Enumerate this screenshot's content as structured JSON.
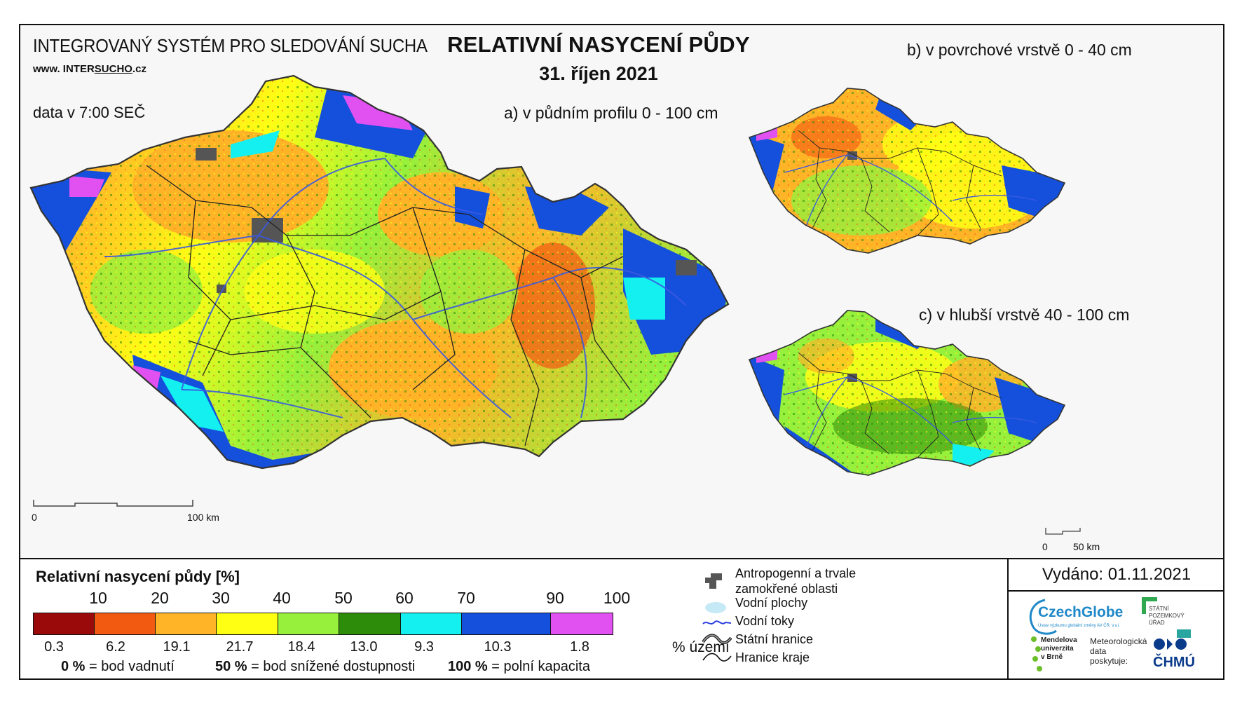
{
  "header": {
    "system_name": "INTEGROVANÝ SYSTÉM PRO SLEDOVÁNÍ SUCHA",
    "website_prefix": "www. INTER",
    "website_brand": "SUCHO",
    "website_suffix": ".cz",
    "data_time": "data v 7:00 SEČ",
    "title": "RELATIVNÍ NASYCENÍ PŮDY",
    "date": "31. říjen 2021"
  },
  "maps": {
    "a_label": "a) v půdním profilu 0 - 100 cm",
    "b_label": "b) v povrchové vrstvě 0 - 40 cm",
    "c_label": "c) v hlubší vrstvě 40 - 100 cm",
    "scale_main_start": "0",
    "scale_main_end": "100 km",
    "scale_small_start": "0",
    "scale_small_end": "50 km"
  },
  "legend": {
    "title": "Relativní nasycení půdy [%]",
    "ticks": [
      "10",
      "20",
      "30",
      "40",
      "50",
      "60",
      "70",
      "90",
      "100"
    ],
    "classes": [
      {
        "color": "#9a0a0a",
        "percent": "0.3"
      },
      {
        "color": "#f25a12",
        "percent": "6.2"
      },
      {
        "color": "#ffb428",
        "percent": "19.1"
      },
      {
        "color": "#ffff14",
        "percent": "21.7"
      },
      {
        "color": "#96f03c",
        "percent": "18.4"
      },
      {
        "color": "#2d8c0a",
        "percent": "13.0"
      },
      {
        "color": "#14f0f0",
        "percent": "9.3"
      },
      {
        "color": "#1450dc",
        "percent": "10.3"
      },
      {
        "color": "#e150f0",
        "percent": "1.8"
      }
    ],
    "percent_unit": "% území",
    "note_0_value": "0 %",
    "note_0_text": "= bod vadnutí",
    "note_50_value": "50 %",
    "note_50_text": "= bod snížené dostupnosti",
    "note_100_value": "100 %",
    "note_100_text": "= polní kapacita"
  },
  "symbols": {
    "anthropogenic_line1": "Antropogenní a trvale",
    "anthropogenic_line2": "zamokřené oblasti",
    "water_bodies": "Vodní plochy",
    "water_courses": "Vodní toky",
    "state_border": "Státní hranice",
    "region_border": "Hranice kraje"
  },
  "footer": {
    "issued": "Vydáno: 01.11.2021",
    "czechglobe": "CzechGlobe",
    "czechglobe_sub": "Ústav výzkumu globální změny AV ČR, v.v.i.",
    "spu_line1": "STÁTNÍ",
    "spu_line2": "POZEMKOVÝ",
    "spu_line3": "ÚŘAD",
    "mendel_line1": "Mendelova",
    "mendel_line2": "univerzita",
    "mendel_line3": "v Brně",
    "meteo_line1": "Meteorologická",
    "meteo_line2": "data",
    "meteo_line3": "poskytuje:",
    "chmu": "ČHMÚ"
  },
  "colors": {
    "czechglobe_blue": "#1e88c8",
    "spu_green": "#2fa84f",
    "chmu_blue": "#0a3a8a",
    "mendel_green": "#6cbf2a",
    "river": "#3a5ae0",
    "anthropogenic": "#555555"
  }
}
